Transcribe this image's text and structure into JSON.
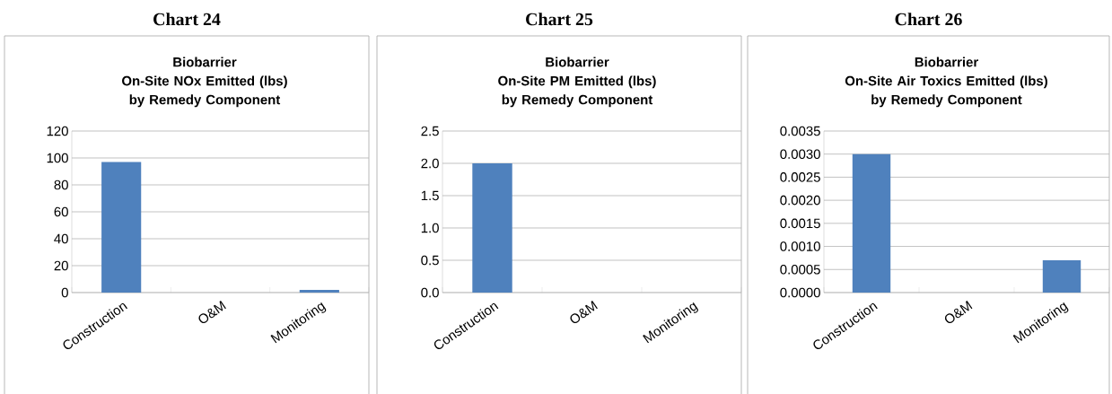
{
  "chart_data": [
    {
      "type": "bar",
      "title": "Chart 24",
      "subtitle": "Biobarrier\nOn-Site NOx Emitted (lbs)\nby Remedy Component",
      "categories": [
        "Construction",
        "O&M",
        "Monitoring"
      ],
      "values": [
        97,
        0,
        2
      ],
      "color": "#4f81bd",
      "ylim": [
        0,
        120
      ],
      "yticks": [
        0,
        20,
        40,
        60,
        80,
        100,
        120
      ],
      "grid": "y"
    },
    {
      "type": "bar",
      "title": "Chart 25",
      "subtitle": "Biobarrier\nOn-Site PM Emitted (lbs)\nby Remedy Component",
      "categories": [
        "Construction",
        "O&M",
        "Monitoring"
      ],
      "values": [
        2.0,
        0,
        0
      ],
      "color": "#4f81bd",
      "ylim": [
        0,
        2.5
      ],
      "yticks": [
        {
          "value": 0,
          "label": "0.0"
        },
        {
          "value": 0.5,
          "label": "0.5"
        },
        {
          "value": 1,
          "label": "1.0"
        },
        {
          "value": 1.5,
          "label": "1.5"
        },
        {
          "value": 2,
          "label": "2.0"
        },
        {
          "value": 2.5,
          "label": "2.5"
        }
      ],
      "grid": "y"
    },
    {
      "type": "bar",
      "title": "Chart 26",
      "subtitle": "Biobarrier\nOn-Site Air Toxics Emitted (lbs)\nby Remedy Component",
      "categories": [
        "Construction",
        "O&M",
        "Monitoring"
      ],
      "values": [
        0.003,
        0,
        0.0007
      ],
      "color": "#4f81bd",
      "ylim": [
        0,
        0.0035
      ],
      "yticks": [
        {
          "value": 0,
          "label": "0.0000"
        },
        {
          "value": 0.0005,
          "label": "0.0005"
        },
        {
          "value": 0.001,
          "label": "0.0010"
        },
        {
          "value": 0.0015,
          "label": "0.0015"
        },
        {
          "value": 0.002,
          "label": "0.0020"
        },
        {
          "value": 0.0025,
          "label": "0.0025"
        },
        {
          "value": 0.003,
          "label": "0.0030"
        },
        {
          "value": 0.0035,
          "label": "0.0035"
        }
      ],
      "grid": "y"
    }
  ]
}
